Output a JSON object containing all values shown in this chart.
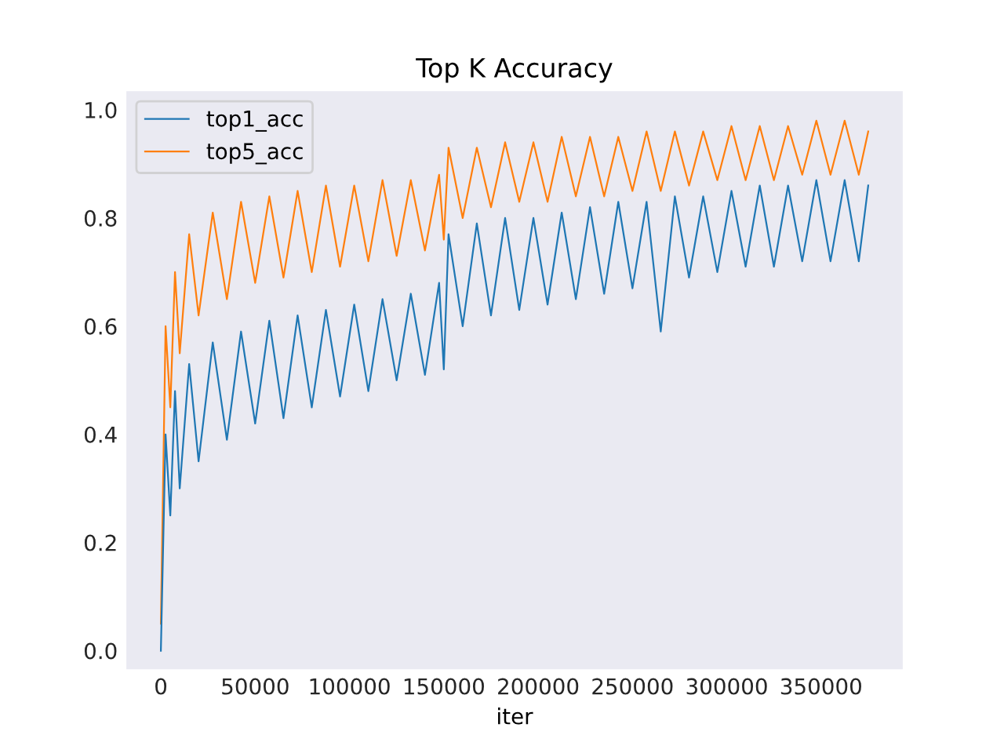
{
  "chart_data": {
    "type": "line",
    "title": "Top K Accuracy",
    "xlabel": "iter",
    "x": [
      0,
      2500,
      5000,
      7500,
      10000,
      15000,
      20000,
      27500,
      35000,
      42500,
      50000,
      57500,
      65000,
      72500,
      80000,
      87500,
      95000,
      102500,
      110000,
      117500,
      125000,
      132500,
      140000,
      147500,
      150000,
      152500,
      160000,
      167500,
      175000,
      182500,
      190000,
      197500,
      205000,
      212500,
      220000,
      227500,
      235000,
      242500,
      250000,
      257500,
      265000,
      272500,
      280000,
      287500,
      295000,
      302500,
      310000,
      317500,
      325000,
      332500,
      340000,
      347500,
      355000,
      362500,
      370000,
      375000
    ],
    "series": [
      {
        "name": "top1_acc",
        "color": "#1f77b4",
        "values": [
          0.0,
          0.4,
          0.25,
          0.48,
          0.3,
          0.53,
          0.35,
          0.57,
          0.39,
          0.59,
          0.42,
          0.61,
          0.43,
          0.62,
          0.45,
          0.63,
          0.47,
          0.64,
          0.48,
          0.65,
          0.5,
          0.66,
          0.51,
          0.68,
          0.52,
          0.77,
          0.6,
          0.79,
          0.62,
          0.8,
          0.63,
          0.8,
          0.64,
          0.81,
          0.65,
          0.82,
          0.66,
          0.83,
          0.67,
          0.83,
          0.59,
          0.84,
          0.69,
          0.84,
          0.7,
          0.85,
          0.71,
          0.86,
          0.71,
          0.86,
          0.72,
          0.87,
          0.72,
          0.87,
          0.72,
          0.86
        ]
      },
      {
        "name": "top5_acc",
        "color": "#ff7f0e",
        "values": [
          0.05,
          0.6,
          0.45,
          0.7,
          0.55,
          0.77,
          0.62,
          0.81,
          0.65,
          0.83,
          0.68,
          0.84,
          0.69,
          0.85,
          0.7,
          0.86,
          0.71,
          0.86,
          0.72,
          0.87,
          0.73,
          0.87,
          0.74,
          0.88,
          0.76,
          0.93,
          0.8,
          0.93,
          0.82,
          0.94,
          0.83,
          0.94,
          0.83,
          0.95,
          0.84,
          0.95,
          0.84,
          0.95,
          0.85,
          0.96,
          0.85,
          0.96,
          0.86,
          0.96,
          0.87,
          0.97,
          0.87,
          0.97,
          0.87,
          0.97,
          0.88,
          0.98,
          0.88,
          0.98,
          0.88,
          0.96
        ]
      }
    ],
    "xlim": [
      -18750,
      393750
    ],
    "xticks": [
      0,
      50000,
      100000,
      150000,
      200000,
      250000,
      300000,
      350000
    ],
    "ylim": [
      -0.036,
      1.036
    ],
    "yticks": [
      {
        "value": 0.0,
        "label": "0.0"
      },
      {
        "value": 0.2,
        "label": "0.2"
      },
      {
        "value": 0.4,
        "label": "0.4"
      },
      {
        "value": 0.6,
        "label": "0.6"
      },
      {
        "value": 0.8,
        "label": "0.8"
      },
      {
        "value": 1.0,
        "label": "1.0"
      }
    ],
    "legend": "top left",
    "grid": false,
    "marker": "none",
    "line_style": "solid"
  }
}
